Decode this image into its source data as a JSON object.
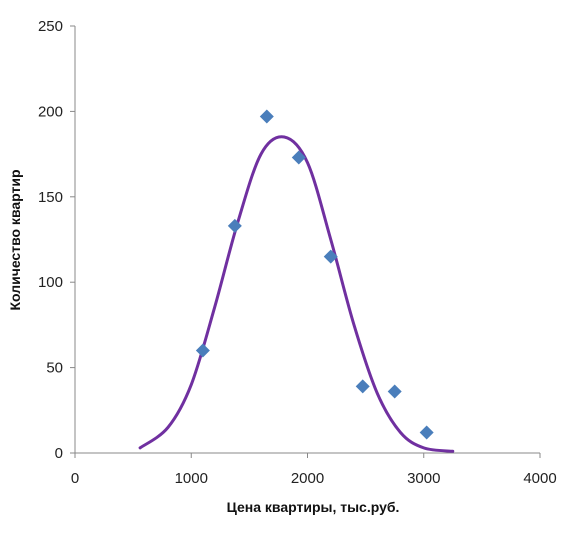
{
  "chart_data": {
    "type": "scatter",
    "title": "",
    "xlabel": "Цена квартиры, тыс.руб.",
    "ylabel": "Количество квартир",
    "xlim": [
      0,
      4000
    ],
    "ylim": [
      0,
      250
    ],
    "x_ticks": [
      0,
      1000,
      2000,
      3000,
      4000
    ],
    "y_ticks": [
      0,
      50,
      100,
      150,
      200,
      250
    ],
    "grid": false,
    "legend": "none",
    "series": [
      {
        "type": "scatter",
        "marker": "diamond",
        "color": "#4A7EBB",
        "points": [
          {
            "x": 1100,
            "y": 60
          },
          {
            "x": 1375,
            "y": 133
          },
          {
            "x": 1650,
            "y": 197
          },
          {
            "x": 1925,
            "y": 173
          },
          {
            "x": 2200,
            "y": 115
          },
          {
            "x": 2475,
            "y": 39
          },
          {
            "x": 2750,
            "y": 36
          },
          {
            "x": 3025,
            "y": 12
          }
        ]
      },
      {
        "type": "line",
        "smooth": true,
        "color": "#7030A0",
        "points": [
          {
            "x": 560,
            "y": 3
          },
          {
            "x": 800,
            "y": 15
          },
          {
            "x": 1000,
            "y": 40
          },
          {
            "x": 1200,
            "y": 85
          },
          {
            "x": 1400,
            "y": 135
          },
          {
            "x": 1600,
            "y": 175
          },
          {
            "x": 1800,
            "y": 185
          },
          {
            "x": 2000,
            "y": 170
          },
          {
            "x": 2200,
            "y": 125
          },
          {
            "x": 2400,
            "y": 75
          },
          {
            "x": 2600,
            "y": 35
          },
          {
            "x": 2800,
            "y": 12
          },
          {
            "x": 3000,
            "y": 3
          },
          {
            "x": 3250,
            "y": 1
          }
        ]
      }
    ]
  }
}
